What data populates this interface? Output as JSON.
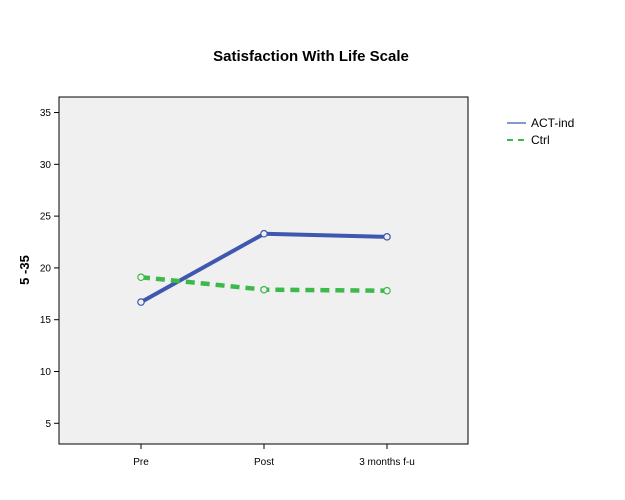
{
  "chart_data": {
    "type": "line",
    "title": "Satisfaction With Life Scale",
    "xlabel": "",
    "ylabel": "5 -35",
    "categories": [
      "Pre",
      "Post",
      "3 months f-u"
    ],
    "ylim": [
      3,
      36.5
    ],
    "yticks": [
      5,
      10,
      15,
      20,
      25,
      30,
      35
    ],
    "grid": false,
    "legend_position": "top-right, outside plot",
    "plot_background": "#f0f0f0",
    "series": [
      {
        "name": "ACT-ind",
        "values": [
          16.7,
          23.3,
          23.0
        ],
        "color": "#3f57b0",
        "line_style": "solid"
      },
      {
        "name": "Ctrl",
        "values": [
          19.1,
          17.9,
          17.8
        ],
        "color": "#3cb94a",
        "line_style": "dashed"
      }
    ]
  }
}
